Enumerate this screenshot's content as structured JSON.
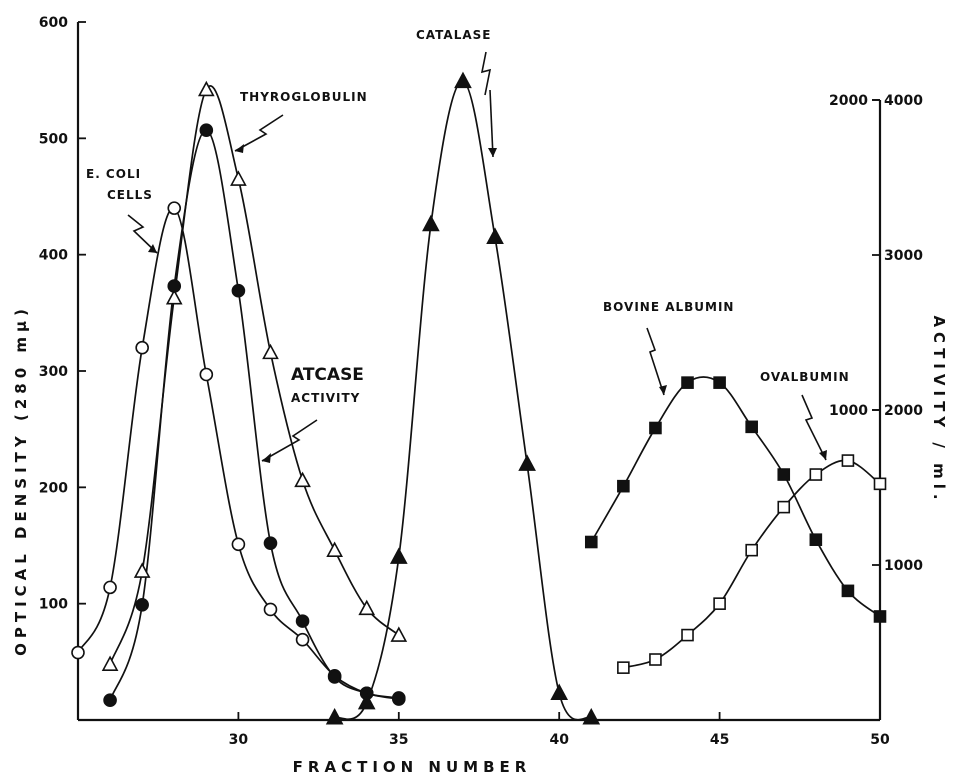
{
  "chart_data": {
    "type": "line",
    "xlabel": "FRACTION NUMBER",
    "ylabel_left": "OPTICAL DENSITY (280 mμ)",
    "ylabel_right": "ACTIVITY / ml.",
    "xlim": [
      25,
      50
    ],
    "ylim_left": [
      0,
      600
    ],
    "x_ticks": [
      30,
      35,
      40,
      45,
      50
    ],
    "y_ticks_left": [
      100,
      200,
      300,
      400,
      500,
      600
    ],
    "y_ticks_right_inner": [
      1000,
      2000
    ],
    "y_ticks_right_outer": [
      1000,
      2000,
      3000,
      4000
    ],
    "series": [
      {
        "name": "E. COLI CELLS",
        "marker": "open-circle",
        "x": [
          25,
          26,
          27,
          28,
          29,
          30,
          31,
          32,
          33,
          34,
          35
        ],
        "y": [
          58,
          114,
          320,
          440,
          297,
          151,
          95,
          69,
          38,
          23,
          19
        ]
      },
      {
        "name": "THYROGLOBULIN",
        "marker": "open-triangle",
        "x": [
          26,
          27,
          28,
          29,
          30,
          31,
          32,
          33,
          34,
          35
        ],
        "y": [
          48,
          128,
          363,
          542,
          465,
          316,
          206,
          146,
          96,
          73
        ]
      },
      {
        "name": "ATCASE ACTIVITY",
        "marker": "filled-circle",
        "x": [
          26,
          27,
          28,
          29,
          30,
          31,
          32,
          33,
          34,
          35
        ],
        "y": [
          17,
          99,
          373,
          507,
          369,
          152,
          85,
          37,
          23,
          18
        ]
      },
      {
        "name": "CATALASE",
        "marker": "filled-triangle",
        "x": [
          33,
          34,
          35,
          36,
          37,
          38,
          39,
          40,
          41
        ],
        "y": [
          2,
          15,
          140,
          426,
          549,
          415,
          220,
          23,
          2
        ]
      },
      {
        "name": "BOVINE ALBUMIN",
        "marker": "filled-square",
        "x": [
          41,
          42,
          43,
          44,
          45,
          46,
          47,
          48,
          49,
          50
        ],
        "y": [
          153,
          201,
          251,
          290,
          290,
          252,
          211,
          155,
          111,
          89
        ]
      },
      {
        "name": "OVALBUMIN",
        "marker": "open-square",
        "x": [
          42,
          43,
          44,
          45,
          46,
          47,
          48,
          49,
          50
        ],
        "y": [
          45,
          52,
          73,
          100,
          146,
          183,
          211,
          223,
          203
        ]
      }
    ]
  },
  "annotations": {
    "ecoli_1": "E. COLI",
    "ecoli_2": "CELLS",
    "thyroglobulin": "THYROGLOBULIN",
    "atcase_1": "ATCASE",
    "atcase_2": "ACTIVITY",
    "catalase": "CATALASE",
    "bovine": "BOVINE ALBUMIN",
    "ovalbumin": "OVALBUMIN"
  },
  "colors": {
    "ink": "#111111",
    "background": "#ffffff"
  }
}
